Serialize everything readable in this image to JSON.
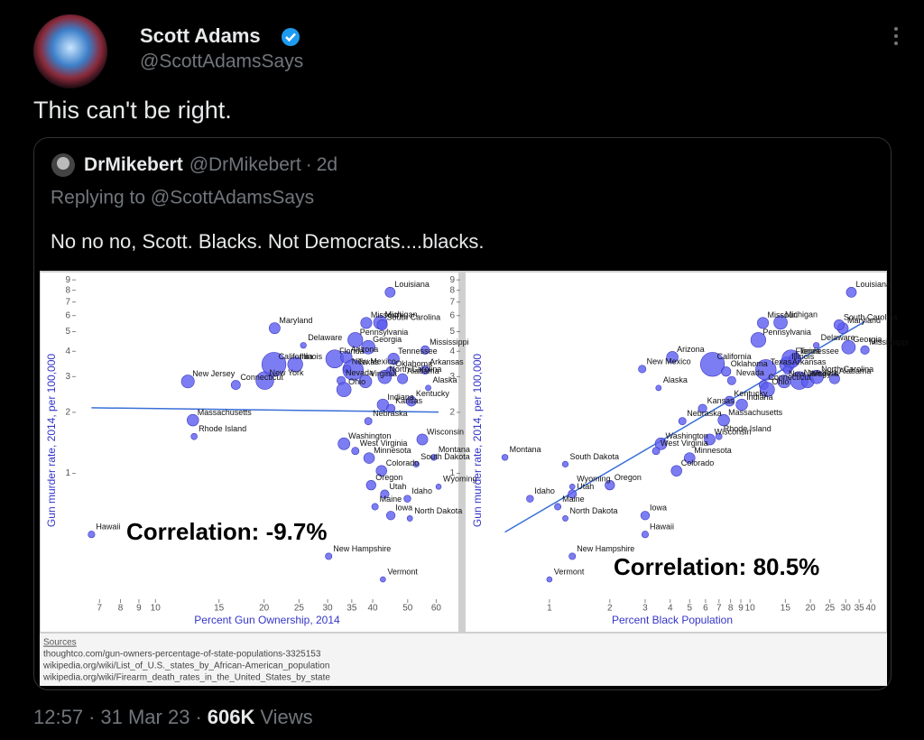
{
  "tweet": {
    "author_name": "Scott Adams",
    "handle": "@ScottAdamsSays",
    "text": "This can't be right.",
    "time": "12:57",
    "date": "31 Mar 23",
    "views": "606K",
    "views_label": "Views"
  },
  "separator": "·",
  "quote": {
    "author_name": "DrMikebert",
    "handle": "@DrMikebert",
    "age": "2d",
    "replying_to": "Replying to @ScottAdamsSays",
    "text": "No no no, Scott. Blacks. Not Democrats....blacks."
  },
  "chart_data": [
    {
      "type": "scatter",
      "x_label": "Percent Gun Ownership, 2014",
      "y_label": "Gun murder rate, 2014, per 100,000",
      "annotation": "Correlation: -9.7%",
      "log_x": true,
      "log_y": true,
      "trendline": true,
      "color": "#5c5cf0",
      "xlim": [
        6.3,
        66
      ],
      "ylim": [
        0.23,
        9.2
      ],
      "xticks": [
        7,
        8,
        9,
        10,
        15,
        20,
        25,
        30,
        35,
        40,
        50,
        60
      ],
      "yticks": [
        1,
        2,
        3,
        4,
        5,
        6,
        7,
        8,
        9
      ],
      "labels": [
        "Hawaii",
        "New Jersey",
        "Massachusetts",
        "Rhode Island",
        "Connecticut",
        "New York",
        "California",
        "Illinois",
        "Maryland",
        "Delaware",
        "Florida",
        "Arizona",
        "Pennsylvania",
        "Missouri",
        "Michigan",
        "Louisiana",
        "South Carolina",
        "Mississippi",
        "Georgia",
        "Texas",
        "New Mexico",
        "Nevada",
        "Tennessee",
        "Arkansas",
        "Oklahoma",
        "Alabama",
        "Virginia",
        "Ohio",
        "North Carolina",
        "Alaska",
        "Indiana",
        "Kentucky",
        "Kansas",
        "Nebraska",
        "Wisconsin",
        "Washington",
        "West Virginia",
        "Montana",
        "South Dakota",
        "Minnesota",
        "Colorado",
        "Oregon",
        "Utah",
        "Wyoming",
        "Maine",
        "Idaho",
        "Iowa",
        "North Dakota",
        "New Hampshire",
        "Vermont"
      ],
      "x": [
        6.65,
        12.3,
        12.7,
        12.8,
        16.7,
        20.1,
        21.3,
        24.4,
        21.4,
        25.7,
        31.4,
        33.8,
        35.8,
        38.4,
        42,
        44.7,
        42.5,
        55.9,
        38.9,
        35.3,
        34,
        32.7,
        45.7,
        55.9,
        44.9,
        48.4,
        38.2,
        33.3,
        43.2,
        57,
        42.7,
        51.2,
        44.9,
        38.9,
        54.9,
        33.3,
        35.8,
        59.1,
        52.8,
        39.1,
        42.3,
        39.6,
        43.2,
        60.9,
        40.6,
        49.9,
        44.9,
        50.7,
        30.2,
        42.7
      ],
      "values": [
        0.5,
        2.84,
        1.83,
        1.52,
        2.73,
        2.87,
        3.45,
        3.45,
        5.2,
        4.28,
        3.67,
        3.74,
        4.55,
        5.52,
        5.55,
        7.82,
        5.4,
        4.06,
        4.19,
        3.24,
        3.27,
        2.87,
        3.67,
        3.24,
        3.18,
        2.93,
        2.84,
        2.59,
        2.99,
        2.64,
        2.18,
        2.27,
        2.09,
        1.81,
        1.47,
        1.4,
        1.29,
        1.2,
        1.11,
        1.19,
        1.03,
        0.875,
        0.79,
        0.86,
        0.685,
        0.75,
        0.62,
        0.6,
        0.39,
        0.3
      ],
      "sizes": [
        1.4,
        8.9,
        6.7,
        1.1,
        3.6,
        19.7,
        38.8,
        12.9,
        5.9,
        0.9,
        19.9,
        6.7,
        12.8,
        6.1,
        9.9,
        4.6,
        4.8,
        3.0,
        10.1,
        27.0,
        2.1,
        2.8,
        6.5,
        3.0,
        3.9,
        4.8,
        8.3,
        11.6,
        9.9,
        0.7,
        6.6,
        4.4,
        2.9,
        1.9,
        5.8,
        7.1,
        1.9,
        1.0,
        0.9,
        5.5,
        5.4,
        4.0,
        2.9,
        0.6,
        1.3,
        1.6,
        3.1,
        0.7,
        1.3,
        0.6
      ]
    },
    {
      "type": "scatter",
      "x_label": "Percent Black Population",
      "y_label": "Gun murder rate, 2014, per 100,000",
      "annotation": "Correlation: 80.5%",
      "log_x": true,
      "log_y": true,
      "trendline": true,
      "color": "#5c5cf0",
      "xlim": [
        0.39,
        43
      ],
      "ylim": [
        0.23,
        9.2
      ],
      "xticks": [
        1,
        2,
        3,
        4,
        5,
        6,
        7,
        8,
        9,
        10,
        15,
        20,
        25,
        30,
        35,
        40
      ],
      "yticks": [
        1,
        2,
        3,
        4,
        5,
        6,
        7,
        8,
        9
      ],
      "labels": [
        "Hawaii",
        "New Jersey",
        "Massachusetts",
        "Rhode Island",
        "Connecticut",
        "New York",
        "California",
        "Illinois",
        "Maryland",
        "Delaware",
        "Florida",
        "Arizona",
        "Pennsylvania",
        "Missouri",
        "Michigan",
        "Louisiana",
        "South Carolina",
        "Mississippi",
        "Georgia",
        "Texas",
        "New Mexico",
        "Nevada",
        "Tennessee",
        "Arkansas",
        "Oklahoma",
        "Alabama",
        "Virginia",
        "Ohio",
        "North Carolina",
        "Alaska",
        "Indiana",
        "Kentucky",
        "Kansas",
        "Nebraska",
        "Wisconsin",
        "Washington",
        "West Virginia",
        "Montana",
        "South Dakota",
        "Minnesota",
        "Colorado",
        "Oregon",
        "Utah",
        "Wyoming",
        "Maine",
        "Idaho",
        "Iowa",
        "North Dakota",
        "New Hampshire",
        "Vermont"
      ],
      "x": [
        3.0,
        14.8,
        7.4,
        7.0,
        11.7,
        17.6,
        6.5,
        15.3,
        29.0,
        21.4,
        16.0,
        4.1,
        11.0,
        11.6,
        14.2,
        32.0,
        27.8,
        37.4,
        31.0,
        12.0,
        2.9,
        8.1,
        16.8,
        15.4,
        7.6,
        26.4,
        19.4,
        12.2,
        21.5,
        3.5,
        9.1,
        7.9,
        5.8,
        4.6,
        6.3,
        3.6,
        3.4,
        0.6,
        1.2,
        5.0,
        4.3,
        2.0,
        1.3,
        1.3,
        1.1,
        0.8,
        3.0,
        1.2,
        1.3,
        1.0
      ],
      "values": [
        0.5,
        2.84,
        1.83,
        1.52,
        2.73,
        2.87,
        3.45,
        3.45,
        5.2,
        4.28,
        3.67,
        3.74,
        4.55,
        5.52,
        5.55,
        7.82,
        5.4,
        4.06,
        4.19,
        3.24,
        3.27,
        2.87,
        3.67,
        3.24,
        3.18,
        2.93,
        2.84,
        2.59,
        2.99,
        2.64,
        2.18,
        2.27,
        2.09,
        1.81,
        1.47,
        1.4,
        1.29,
        1.2,
        1.11,
        1.19,
        1.03,
        0.875,
        0.79,
        0.86,
        0.685,
        0.75,
        0.62,
        0.6,
        0.39,
        0.3
      ],
      "sizes": [
        1.4,
        8.9,
        6.7,
        1.1,
        3.6,
        19.7,
        38.8,
        12.9,
        5.9,
        0.9,
        19.9,
        6.7,
        12.8,
        6.1,
        9.9,
        4.6,
        4.8,
        3.0,
        10.1,
        27.0,
        2.1,
        2.8,
        6.5,
        3.0,
        3.9,
        4.8,
        8.3,
        11.6,
        9.9,
        0.7,
        6.6,
        4.4,
        2.9,
        1.9,
        5.8,
        7.1,
        1.9,
        1.0,
        0.9,
        5.5,
        5.4,
        4.0,
        2.9,
        0.6,
        1.3,
        1.6,
        3.1,
        0.7,
        1.3,
        0.6
      ]
    }
  ],
  "sources": {
    "title": "Sources",
    "links": [
      "thoughtco.com/gun-owners-percentage-of-state-populations-3325153",
      "wikipedia.org/wiki/List_of_U.S._states_by_African-American_population",
      "wikipedia.org/wiki/Firearm_death_rates_in_the_United_States_by_state"
    ]
  }
}
